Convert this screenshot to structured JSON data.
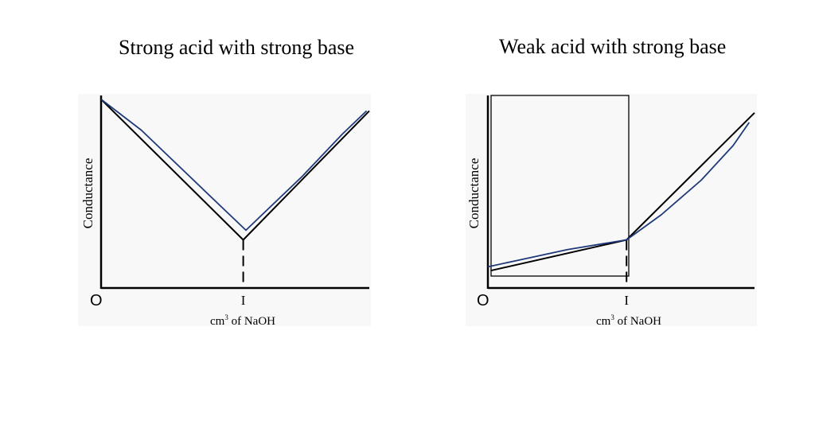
{
  "chart_data": [
    {
      "type": "line",
      "title": "Strong acid with strong base",
      "ylabel": "Conductance",
      "xlabel_prefix": "cm",
      "xlabel_sup": "3",
      "xlabel_suffix": " of NaOH",
      "origin_label": "O",
      "equivalence_label": "I",
      "equivalence_x": 0.53,
      "xlim": [
        0,
        1
      ],
      "ylim": [
        0,
        1
      ],
      "series": [
        {
          "color": "#000000",
          "points": [
            [
              0,
              0.98
            ],
            [
              0.53,
              0.25
            ],
            [
              1,
              0.92
            ]
          ]
        },
        {
          "color": "#1f3a7a",
          "points": [
            [
              0,
              0.98
            ],
            [
              0.15,
              0.82
            ],
            [
              0.3,
              0.62
            ],
            [
              0.45,
              0.42
            ],
            [
              0.54,
              0.3
            ],
            [
              0.6,
              0.38
            ],
            [
              0.75,
              0.58
            ],
            [
              0.9,
              0.8
            ],
            [
              0.99,
              0.92
            ]
          ]
        }
      ]
    },
    {
      "type": "line",
      "title": "Weak acid with strong base",
      "ylabel": "Conductance",
      "xlabel_prefix": "cm",
      "xlabel_sup": "3",
      "xlabel_suffix": " of NaOH",
      "origin_label": "O",
      "equivalence_label": "I",
      "equivalence_x": 0.52,
      "xlim": [
        0,
        1
      ],
      "ylim": [
        0,
        1
      ],
      "series": [
        {
          "color": "#000000",
          "points": [
            [
              0.01,
              0.09
            ],
            [
              0.52,
              0.25
            ],
            [
              1,
              0.91
            ]
          ]
        },
        {
          "color": "#1f3a7a",
          "points": [
            [
              0,
              0.11
            ],
            [
              0.1,
              0.14
            ],
            [
              0.3,
              0.2
            ],
            [
              0.52,
              0.25
            ],
            [
              0.65,
              0.38
            ],
            [
              0.8,
              0.56
            ],
            [
              0.92,
              0.74
            ],
            [
              0.98,
              0.86
            ]
          ]
        }
      ]
    }
  ]
}
